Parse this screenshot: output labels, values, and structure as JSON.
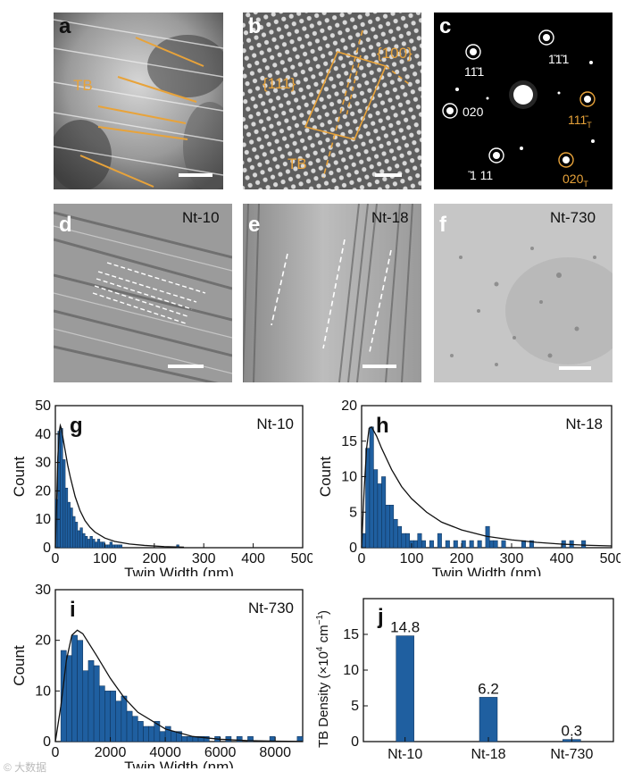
{
  "figure": {
    "panels": {
      "a": {
        "label": "a",
        "annotation": "TB"
      },
      "b": {
        "label": "b",
        "annotation_111": "{111}",
        "annotation_100": "{100}",
        "annotation_tb": "TB"
      },
      "c": {
        "label": "c",
        "spots": [
          "111̄",
          "1̄1̄1",
          "020",
          "111̄",
          "020",
          "̄1̄1"
        ],
        "spot_texts": {
          "s1": "11̄1",
          "s2": "1̄1̄1",
          "s3": "020",
          "s4": "111̄",
          "s4_sub": "T",
          "s5": "̄1 11",
          "s6": "020",
          "s6_sub": "T"
        }
      },
      "d": {
        "label": "d",
        "sample": "Nt-10"
      },
      "e": {
        "label": "e",
        "sample": "Nt-18"
      },
      "f": {
        "label": "f",
        "sample": "Nt-730"
      }
    },
    "colors": {
      "bar": "#1f5fa0",
      "annotation": "#e8a33a",
      "curve": "#111111"
    },
    "watermark": "© 大数据"
  },
  "chart_data": [
    {
      "id": "g",
      "label": "g",
      "type": "bar",
      "sample": "Nt-10",
      "xlabel": "Twin Width (nm)",
      "ylabel": "Count",
      "xlim": [
        0,
        500
      ],
      "ylim": [
        0,
        50
      ],
      "xticks": [
        0,
        100,
        200,
        300,
        400,
        500
      ],
      "yticks": [
        0,
        10,
        20,
        30,
        40,
        50
      ],
      "bin_width": 5,
      "bins_start": [
        0,
        5,
        10,
        15,
        20,
        25,
        30,
        35,
        40,
        45,
        50,
        55,
        60,
        65,
        70,
        75,
        80,
        85,
        90,
        95,
        100,
        105,
        110,
        115,
        120,
        125,
        130,
        245
      ],
      "values": [
        17,
        41,
        42,
        31,
        21,
        16,
        14,
        11,
        9,
        6,
        7,
        5,
        4,
        3,
        4,
        3,
        2,
        3,
        2,
        2,
        1,
        1,
        2,
        1,
        1,
        1,
        1,
        1
      ],
      "fit_curve": {
        "x": [
          0,
          3,
          5,
          8,
          10,
          12,
          14,
          16,
          20,
          25,
          30,
          40,
          50,
          60,
          70,
          80,
          100,
          120,
          150,
          180,
          220,
          260
        ],
        "y": [
          0,
          18,
          32,
          41,
          43,
          42,
          40,
          38,
          34,
          29,
          25,
          18,
          13,
          9.5,
          7.2,
          5.5,
          3.4,
          2.2,
          1.3,
          0.8,
          0.4,
          0.2
        ]
      }
    },
    {
      "id": "h",
      "label": "h",
      "type": "bar",
      "sample": "Nt-18",
      "xlabel": "Twin Width (nm)",
      "ylabel": "Count",
      "xlim": [
        0,
        500
      ],
      "ylim": [
        0,
        20
      ],
      "xticks": [
        0,
        100,
        200,
        300,
        400,
        500
      ],
      "yticks": [
        0,
        5,
        10,
        15,
        20
      ],
      "bin_width": 8,
      "bins_start": [
        0,
        8,
        16,
        24,
        32,
        40,
        48,
        56,
        64,
        72,
        80,
        88,
        96,
        104,
        112,
        120,
        136,
        152,
        168,
        184,
        200,
        216,
        232,
        248,
        256,
        264,
        280,
        320,
        336,
        400,
        416,
        440
      ],
      "values": [
        2,
        14,
        17,
        11,
        9,
        10,
        6,
        6,
        4,
        3,
        2,
        2,
        1,
        1,
        2,
        1,
        1,
        2,
        1,
        1,
        1,
        1,
        1,
        3,
        1,
        1,
        1,
        1,
        1,
        1,
        1,
        1
      ],
      "fit_curve": {
        "x": [
          0,
          5,
          10,
          15,
          20,
          30,
          40,
          50,
          60,
          80,
          100,
          130,
          160,
          200,
          250,
          300,
          350,
          400,
          450,
          500
        ],
        "y": [
          0,
          8,
          14,
          16.8,
          17,
          15.7,
          14,
          12.5,
          11,
          8.6,
          6.9,
          5,
          3.6,
          2.5,
          1.6,
          1.1,
          0.75,
          0.5,
          0.35,
          0.25
        ]
      }
    },
    {
      "id": "i",
      "label": "i",
      "type": "bar",
      "sample": "Nt-730",
      "xlabel": "Twin Width (nm)",
      "ylabel": "Count",
      "xlim": [
        0,
        9000
      ],
      "ylim": [
        0,
        30
      ],
      "xticks": [
        0,
        2000,
        4000,
        6000,
        8000
      ],
      "yticks": [
        0,
        10,
        20,
        30
      ],
      "bin_width": 200,
      "bins_start": [
        200,
        400,
        600,
        800,
        1000,
        1200,
        1400,
        1600,
        1800,
        2000,
        2200,
        2400,
        2600,
        2800,
        3000,
        3200,
        3400,
        3600,
        3800,
        4000,
        4200,
        4400,
        4600,
        4800,
        5000,
        5200,
        5400,
        5800,
        6200,
        6600,
        7000,
        7800,
        8800
      ],
      "values": [
        18,
        17,
        21,
        20,
        14,
        16,
        15,
        11,
        10,
        10,
        8,
        9,
        6,
        5,
        4,
        3,
        3,
        4,
        2,
        3,
        2,
        2,
        1,
        1,
        1,
        1,
        1,
        1,
        1,
        1,
        1,
        1,
        1
      ],
      "fit_curve": {
        "x": [
          0,
          200,
          400,
          600,
          800,
          1000,
          1500,
          2000,
          2500,
          3000,
          4000,
          5000,
          6000,
          7000,
          8000,
          9000
        ],
        "y": [
          0,
          7,
          16,
          21,
          22,
          21.3,
          17,
          12.5,
          8.7,
          5.8,
          2.5,
          1.0,
          0.45,
          0.2,
          0.08,
          0.03
        ]
      }
    },
    {
      "id": "j",
      "label": "j",
      "type": "bar",
      "categories": [
        "Nt-10",
        "Nt-18",
        "Nt-730"
      ],
      "values": [
        14.8,
        6.2,
        0.3
      ],
      "data_labels": [
        "14.8",
        "6.2",
        "0.3"
      ],
      "ylabel_main": "TB Density (×10",
      "ylabel_exp1": "4",
      "ylabel_mid": " cm",
      "ylabel_exp2": "−1",
      "ylabel_end": ")",
      "ylim": [
        0,
        20
      ],
      "yticks": [
        0,
        5,
        10,
        15
      ]
    }
  ]
}
